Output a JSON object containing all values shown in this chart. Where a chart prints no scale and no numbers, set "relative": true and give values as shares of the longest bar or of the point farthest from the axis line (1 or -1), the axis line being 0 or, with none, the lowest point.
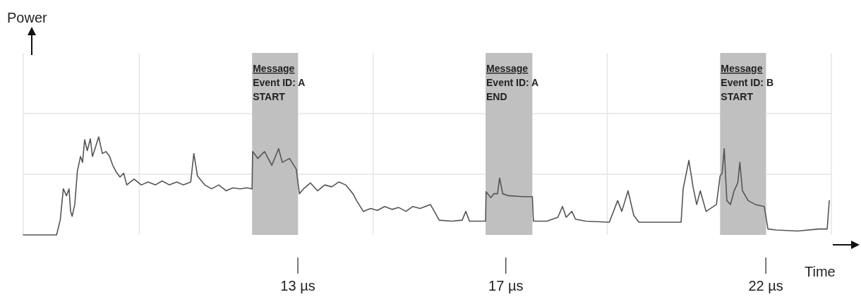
{
  "chart_data": {
    "type": "line",
    "xlabel": "Time",
    "annotations": [
      "Power"
    ],
    "relative": true,
    "color": "#555555",
    "grid": true,
    "xlim": [
      7.72,
      23.26
    ],
    "xticks": [
      {
        "value": 9.95,
        "label": null
      },
      {
        "value": 13,
        "label": "13 µs"
      },
      {
        "value": 14.45,
        "label": null
      },
      {
        "value": 17,
        "label": "17 µs"
      },
      {
        "value": 18.95,
        "label": null
      },
      {
        "value": 22,
        "label": "22 µs"
      }
    ],
    "bands": [
      {
        "axis": "x",
        "from": 12.12,
        "to": 13.0,
        "label": "Message\nEvent ID: A\nSTART",
        "color": "#c0c0c0"
      },
      {
        "axis": "x",
        "from": 16.61,
        "to": 17.51,
        "label": "Message\nEvent ID: A\nEND",
        "color": "#c0c0c0"
      },
      {
        "axis": "x",
        "from": 21.12,
        "to": 22.0,
        "label": "Message\nEvent ID: B\nSTART",
        "color": "#c0c0c0"
      }
    ],
    "x": [
      7.72,
      8.36,
      8.43,
      8.49,
      8.55,
      8.6,
      8.63,
      8.66,
      8.71,
      8.76,
      8.82,
      8.86,
      8.9,
      8.95,
      9.01,
      9.05,
      9.1,
      9.17,
      9.24,
      9.31,
      9.38,
      9.44,
      9.51,
      9.58,
      9.65,
      9.71,
      9.85,
      9.99,
      10.12,
      10.26,
      10.39,
      10.53,
      10.67,
      10.8,
      10.94,
      11.0,
      11.07,
      11.21,
      11.34,
      11.48,
      11.62,
      11.75,
      11.89,
      12.02,
      12.12,
      12.13,
      12.23,
      12.36,
      12.5,
      12.63,
      12.7,
      12.84,
      12.97,
      13.03,
      13.11,
      13.24,
      13.38,
      13.52,
      13.65,
      13.79,
      13.92,
      14.06,
      14.13,
      14.26,
      14.4,
      14.53,
      14.67,
      14.81,
      14.94,
      15.08,
      15.21,
      15.35,
      15.55,
      15.72,
      15.96,
      16.16,
      16.23,
      16.3,
      16.5,
      16.61,
      16.62,
      16.71,
      16.77,
      16.84,
      16.88,
      16.94,
      17.05,
      17.32,
      17.51,
      17.53,
      17.79,
      18.0,
      18.09,
      18.16,
      18.27,
      18.34,
      18.54,
      18.99,
      19.15,
      19.23,
      19.35,
      19.46,
      19.56,
      20.37,
      20.41,
      20.52,
      20.6,
      20.67,
      20.74,
      20.85,
      21.05,
      21.12,
      21.16,
      21.2,
      21.25,
      21.32,
      21.39,
      21.46,
      21.5,
      21.55,
      21.66,
      21.8,
      21.97,
      22.04,
      22.2,
      22.61,
      23.02,
      23.18,
      23.22
    ],
    "values": [
      0,
      0,
      0.15,
      0.47,
      0.4,
      0.47,
      0.24,
      0.19,
      0.31,
      0.65,
      0.8,
      0.74,
      0.97,
      0.86,
      0.98,
      0.8,
      0.88,
      1.0,
      0.83,
      0.85,
      0.8,
      0.71,
      0.64,
      0.59,
      0.63,
      0.51,
      0.57,
      0.51,
      0.54,
      0.51,
      0.55,
      0.51,
      0.54,
      0.51,
      0.54,
      0.83,
      0.6,
      0.51,
      0.47,
      0.51,
      0.45,
      0.48,
      0.47,
      0.48,
      0.47,
      0.85,
      0.78,
      0.85,
      0.71,
      0.88,
      0.74,
      0.78,
      0.67,
      0.42,
      0.47,
      0.53,
      0.45,
      0.51,
      0.49,
      0.54,
      0.51,
      0.42,
      0.35,
      0.24,
      0.27,
      0.25,
      0.29,
      0.26,
      0.28,
      0.24,
      0.29,
      0.27,
      0.31,
      0.15,
      0.14,
      0.15,
      0.24,
      0.14,
      0.14,
      0.14,
      0.44,
      0.38,
      0.42,
      0.42,
      0.58,
      0.42,
      0.4,
      0.39,
      0.39,
      0.14,
      0.14,
      0.18,
      0.29,
      0.18,
      0.24,
      0.16,
      0.14,
      0.13,
      0.35,
      0.24,
      0.45,
      0.2,
      0.13,
      0.13,
      0.47,
      0.76,
      0.49,
      0.31,
      0.45,
      0.24,
      0.31,
      0.6,
      0.63,
      0.88,
      0.35,
      0.31,
      0.45,
      0.53,
      0.74,
      0.45,
      0.35,
      0.31,
      0.29,
      0.06,
      0.05,
      0.04,
      0.06,
      0.06,
      0.35
    ]
  }
}
